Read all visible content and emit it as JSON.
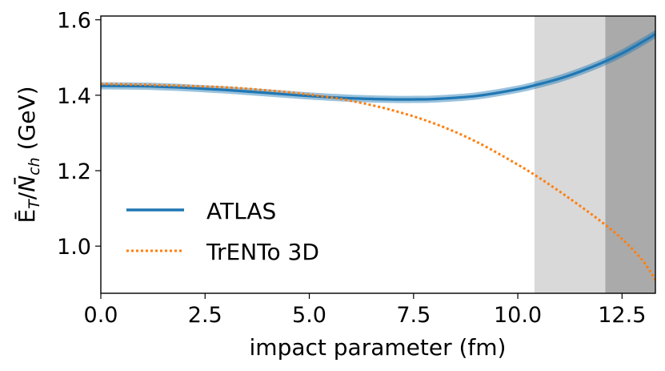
{
  "chart_data": {
    "type": "line",
    "xlabel": "impact parameter (fm)",
    "ylabel": "Ē_T/N̄_ch (GeV)",
    "ylabel_parts": {
      "e": "Ē",
      "t": "T",
      "slash": "/",
      "n": "N̄",
      "ch": "ch",
      "unit": " (GeV)"
    },
    "xlim": [
      0.0,
      13.3
    ],
    "ylim": [
      0.875,
      1.61
    ],
    "xticks": [
      0.0,
      2.5,
      5.0,
      7.5,
      10.0,
      12.5
    ],
    "xtick_labels": [
      "0.0",
      "2.5",
      "5.0",
      "7.5",
      "10.0",
      "12.5"
    ],
    "yticks": [
      1.0,
      1.2,
      1.4,
      1.6
    ],
    "ytick_labels": [
      "1.0",
      "1.2",
      "1.4",
      "1.6"
    ],
    "shaded_regions": [
      {
        "x0": 10.4,
        "x1": 12.1,
        "color": "#d9d9d9"
      },
      {
        "x0": 12.1,
        "x1": 13.3,
        "color": "#aaaaaa"
      }
    ],
    "legend_position": "lower-left",
    "series": [
      {
        "name": "ATLAS",
        "style": "solid",
        "color": "#1f77b4",
        "band": true,
        "x": [
          0.0,
          1.0,
          2.0,
          3.0,
          4.0,
          5.0,
          6.0,
          7.0,
          7.5,
          8.0,
          9.0,
          10.0,
          10.5,
          11.0,
          11.5,
          12.0,
          12.5,
          13.0,
          13.3
        ],
        "y": [
          1.425,
          1.424,
          1.42,
          1.414,
          1.406,
          1.398,
          1.392,
          1.389,
          1.389,
          1.39,
          1.398,
          1.416,
          1.429,
          1.444,
          1.463,
          1.485,
          1.511,
          1.542,
          1.562
        ]
      },
      {
        "name": "TrENTo 3D",
        "style": "dotted",
        "color": "#ff7f0e",
        "band": false,
        "x": [
          0.0,
          1.0,
          2.0,
          3.0,
          4.0,
          5.0,
          6.0,
          7.0,
          8.0,
          9.0,
          10.0,
          10.5,
          11.0,
          11.5,
          12.0,
          12.5,
          13.0,
          13.3
        ],
        "y": [
          1.43,
          1.428,
          1.425,
          1.421,
          1.413,
          1.402,
          1.385,
          1.36,
          1.325,
          1.277,
          1.216,
          1.182,
          1.145,
          1.106,
          1.065,
          1.019,
          0.961,
          0.91
        ]
      }
    ]
  }
}
